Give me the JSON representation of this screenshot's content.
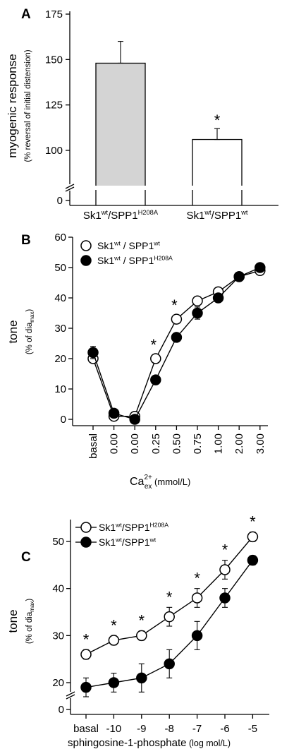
{
  "chart_data": [
    {
      "panel": "A",
      "type": "bar",
      "ylabel": "myogenic response",
      "ylabel_sub": "(% reversal of initial distension)",
      "y_axis_break": true,
      "yticks": [
        "0",
        "100",
        "125",
        "150",
        "175"
      ],
      "ylim": [
        75,
        175
      ],
      "categories": [
        {
          "base": "Sk1",
          "sup1": "wt",
          "mid": "/SPP1",
          "sup2": "H208A"
        },
        {
          "base": "Sk1",
          "sup1": "wt",
          "mid": "/SPP1",
          "sup2": "wt"
        }
      ],
      "values": [
        148,
        106
      ],
      "errors": [
        12,
        6
      ],
      "bar_colors": [
        "#d4d4d4",
        "#ffffff"
      ],
      "significance": [
        "",
        "*"
      ]
    },
    {
      "panel": "B",
      "type": "line",
      "ylabel": "tone",
      "ylabel_sub": {
        "base": "(% of dia",
        "sub": "max",
        "end": ")"
      },
      "xlabel": {
        "base": "Ca",
        "sup": "2+",
        "sub": "ex",
        "unit": "(mmol/L)"
      },
      "ylim": [
        0,
        60
      ],
      "yticks": [
        "0",
        "10",
        "20",
        "30",
        "40",
        "50",
        "60"
      ],
      "x": [
        "basal",
        "0.00",
        "0.00",
        "0.25",
        "0.50",
        "0.75",
        "1.00",
        "2.00",
        "3.00"
      ],
      "series": [
        {
          "name": {
            "base": "Sk1",
            "sup1": "wt",
            "mid": " / SPP1",
            "sup2": "wt"
          },
          "marker": "open",
          "values": [
            20,
            1,
            1,
            20,
            33,
            39,
            42,
            47,
            49
          ],
          "errors": [
            1,
            0.8,
            0.8,
            1,
            1,
            1,
            1,
            1,
            1
          ]
        },
        {
          "name": {
            "base": "Sk1",
            "sup1": "wt",
            "mid": " / SPP1",
            "sup2": "H208A"
          },
          "marker": "filled",
          "values": [
            22,
            2,
            0,
            13,
            27,
            35,
            40,
            47,
            50
          ],
          "errors": [
            2,
            0.8,
            0.8,
            1,
            1,
            2,
            1,
            1,
            1
          ]
        }
      ],
      "significance": [
        "",
        "",
        "",
        "*",
        "*",
        "",
        "",
        "",
        ""
      ]
    },
    {
      "panel": "C",
      "type": "line",
      "ylabel": "tone",
      "ylabel_sub": {
        "base": "(% of dia",
        "sub": "max",
        "end": ")"
      },
      "xlabel": {
        "base": "sphingosine-1-phosphate",
        "unit": "(log mol/L)"
      },
      "y_axis_break": true,
      "ylim": [
        15,
        53
      ],
      "yticks": [
        "0",
        "20",
        "30",
        "40",
        "50"
      ],
      "x": [
        "basal",
        "-10",
        "-9",
        "-8",
        "-7",
        "-6",
        "-5"
      ],
      "series": [
        {
          "name": {
            "base": "Sk1",
            "sup1": "wt",
            "mid": "/SPP1",
            "sup2": "H208A"
          },
          "marker": "open",
          "values": [
            26,
            29,
            30,
            34,
            38,
            44,
            51
          ],
          "errors": [
            1,
            1,
            1,
            2,
            2,
            2,
            1
          ]
        },
        {
          "name": {
            "base": "Sk1",
            "sup1": "wt",
            "mid": "/SPP1",
            "sup2": "wt"
          },
          "marker": "filled",
          "values": [
            19,
            20,
            21,
            24,
            30,
            38,
            46
          ],
          "errors": [
            2,
            2,
            3,
            3,
            3,
            2,
            1
          ]
        }
      ],
      "significance": [
        "*",
        "*",
        "*",
        "*",
        "*",
        "*",
        "*"
      ]
    }
  ],
  "panels": {
    "A": {
      "letter": "A"
    },
    "B": {
      "letter": "B"
    },
    "C": {
      "letter": "C"
    }
  },
  "colors": {
    "axis": "#000000",
    "bar_gray": "#d4d4d4",
    "marker_fill": "#000000",
    "marker_open": "#ffffff"
  }
}
